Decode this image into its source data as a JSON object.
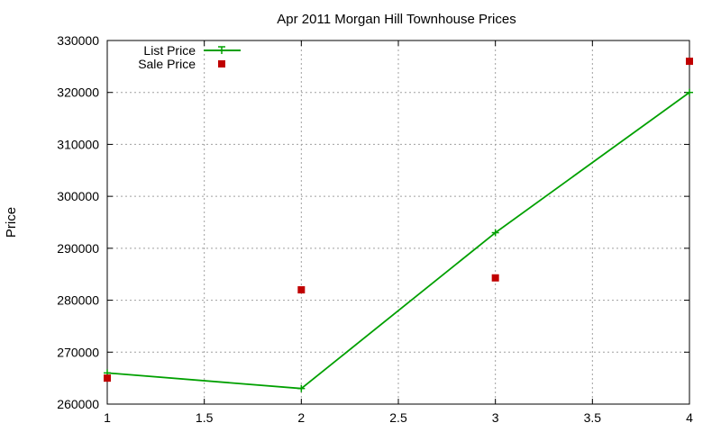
{
  "chart_data": {
    "type": "line",
    "title": "Apr 2011 Morgan Hill Townhouse Prices",
    "xlabel": "",
    "ylabel": "Price",
    "xlim": [
      1,
      4
    ],
    "ylim": [
      260000,
      330000
    ],
    "x_ticks": [
      1,
      1.5,
      2,
      2.5,
      3,
      3.5,
      4
    ],
    "y_ticks": [
      260000,
      270000,
      280000,
      290000,
      300000,
      310000,
      320000,
      330000
    ],
    "grid": true,
    "legend_position": "top-left",
    "series": [
      {
        "name": "List Price",
        "style": "line-points",
        "marker": "plus",
        "color": "#00a000",
        "points": [
          [
            1,
            266000
          ],
          [
            2,
            263000
          ],
          [
            3,
            293000
          ],
          [
            4,
            320000
          ]
        ]
      },
      {
        "name": "Sale Price",
        "style": "points",
        "marker": "square",
        "color": "#c00000",
        "points": [
          [
            1,
            265000
          ],
          [
            2,
            282000
          ],
          [
            3,
            284300
          ],
          [
            4,
            326000
          ]
        ]
      }
    ]
  }
}
